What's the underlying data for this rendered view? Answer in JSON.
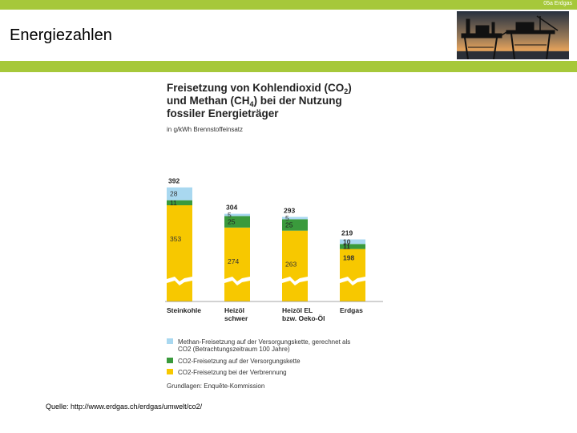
{
  "header": {
    "corner_label": "05a Erdgas",
    "page_title": "Energiezahlen"
  },
  "chart_data": {
    "type": "bar",
    "stacked": true,
    "title": "Freisetzung von Kohlendioxid (CO2) und Methan (CH4) bei der Nutzung fossiler Energieträger",
    "title_lines": [
      "Freisetzung von Kohlendioxid (CO",
      "und Methan (CH",
      "fossiler Energieträger"
    ],
    "title_line_suffixes": [
      [
        {
          "text": "2",
          "sub": true
        },
        {
          "text": ")",
          "sub": false
        }
      ],
      [
        {
          "text": "4",
          "sub": true
        },
        {
          "text": ") bei der Nutzung",
          "sub": false
        }
      ],
      []
    ],
    "unit_label": "in g/kWh Brennstoffeinsatz",
    "categories": [
      "Steinkohle",
      "Heizöl schwer",
      "Heizöl EL bzw. Oeko-Öl",
      "Erdgas"
    ],
    "category_lines": [
      [
        "Steinkohle"
      ],
      [
        "Heizöl",
        "schwer"
      ],
      [
        "Heizöl EL",
        "bzw. Oeko-Öl"
      ],
      [
        "Erdgas"
      ]
    ],
    "totals": [
      392,
      304,
      293,
      219
    ],
    "series": [
      {
        "name": "CO2-Freisetzung bei der Verbrennung",
        "values": [
          353,
          274,
          263,
          198
        ],
        "color": "#f7c800"
      },
      {
        "name": "CO2-Freisetzung auf der Versorgungskette",
        "values": [
          11,
          25,
          25,
          11
        ],
        "color": "#3a9a3c"
      },
      {
        "name": "Methan-Freisetzung auf der Versorgungskette, gerechnet als CO2 (Betrachtungszeitraum 100 Jahre)",
        "values": [
          28,
          5,
          5,
          10
        ],
        "color": "#a9d8f0"
      }
    ],
    "axis_break": true,
    "legend_order": [
      2,
      1,
      0
    ],
    "legend": [
      {
        "lines": [
          "Methan-Freisetzung auf der Versorgungskette, gerechnet als",
          "CO2 (Betrachtungszeitraum 100 Jahre)"
        ],
        "color": "#a9d8f0"
      },
      {
        "lines": [
          "CO2-Freisetzung auf der Versorgungskette"
        ],
        "color": "#3a9a3c"
      },
      {
        "lines": [
          "CO2-Freisetzung bei der Verbrennung"
        ],
        "color": "#f7c800"
      }
    ],
    "footnote": "Grundlagen: Enquête-Kommission",
    "legend_placement": "bottom"
  },
  "source_text": "Quelle: http://www.erdgas.ch/erdgas/umwelt/co2/"
}
